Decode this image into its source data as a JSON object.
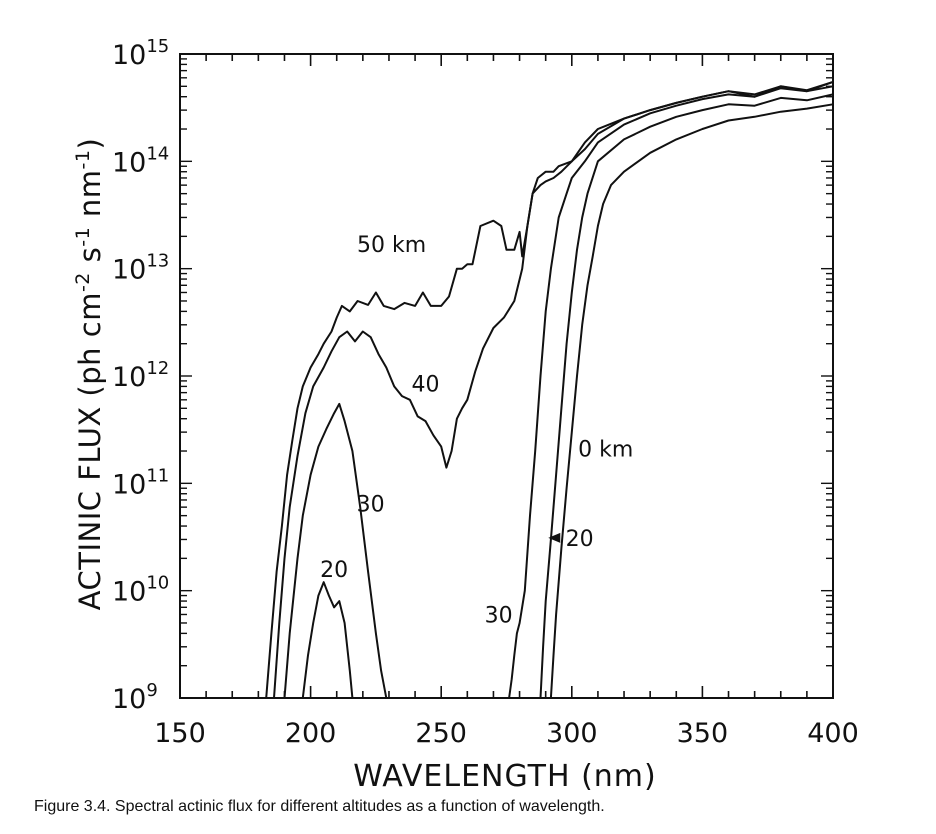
{
  "caption": "Figure 3.4.  Spectral actinic flux for different altitudes as a function of wavelength.",
  "chart_data": {
    "type": "line",
    "xlabel": "WAVELENGTH (nm)",
    "ylabel": "ACTINIC FLUX (ph cm^-2 s^-1 nm^-1)",
    "ylabel_parts": {
      "text1": "ACTINIC FLUX (ph cm",
      "sup1": "-2",
      "text2": " s",
      "sup2": "-1",
      "text3": " nm",
      "sup3": "-1",
      "text4": ")"
    },
    "xlim": [
      150,
      400
    ],
    "ylim": [
      1000000000.0,
      1000000000000000.0
    ],
    "yscale": "log",
    "x_ticks": [
      150,
      200,
      250,
      300,
      350,
      400
    ],
    "y_ticks": [
      {
        "base": "10",
        "exp": "9"
      },
      {
        "base": "10",
        "exp": "10"
      },
      {
        "base": "10",
        "exp": "11"
      },
      {
        "base": "10",
        "exp": "12"
      },
      {
        "base": "10",
        "exp": "13"
      },
      {
        "base": "10",
        "exp": "14"
      },
      {
        "base": "10",
        "exp": "15"
      }
    ],
    "series": [
      {
        "name": "50 km",
        "x": [
          183,
          185,
          187,
          189,
          191,
          193,
          195,
          197,
          200,
          203,
          205,
          208,
          210,
          212,
          215,
          218,
          222,
          225,
          228,
          232,
          236,
          240,
          243,
          246,
          250,
          253,
          256,
          258,
          260,
          262,
          265,
          270,
          273,
          275,
          278,
          280,
          281,
          283,
          285,
          287,
          290,
          293,
          295,
          300,
          305,
          310,
          320,
          330,
          340,
          350,
          360,
          370,
          380,
          390,
          400
        ],
        "y": [
          1000000000.0,
          4000000000.0,
          15000000000.0,
          40000000000.0,
          120000000000.0,
          250000000000.0,
          500000000000.0,
          800000000000.0,
          1200000000000.0,
          1600000000000.0,
          2000000000000.0,
          2600000000000.0,
          3500000000000.0,
          4500000000000.0,
          4000000000000.0,
          5000000000000.0,
          4600000000000.0,
          6000000000000.0,
          4500000000000.0,
          4200000000000.0,
          4800000000000.0,
          4500000000000.0,
          6000000000000.0,
          4500000000000.0,
          4500000000000.0,
          5500000000000.0,
          10000000000000.0,
          10000000000000.0,
          11000000000000.0,
          11000000000000.0,
          25000000000000.0,
          28000000000000.0,
          25000000000000.0,
          15000000000000.0,
          15000000000000.0,
          22000000000000.0,
          13000000000000.0,
          25000000000000.0,
          50000000000000.0,
          70000000000000.0,
          80000000000000.0,
          80000000000000.0,
          90000000000000.0,
          100000000000000.0,
          150000000000000.0,
          200000000000000.0,
          250000000000000.0,
          300000000000000.0,
          350000000000000.0,
          400000000000000.0,
          450000000000000.0,
          400000000000000.0,
          500000000000000.0,
          450000000000000.0,
          550000000000000.0
        ]
      },
      {
        "name": "40",
        "x": [
          186,
          188,
          190,
          192,
          195,
          198,
          201,
          205,
          208,
          211,
          214,
          217,
          220,
          223,
          226,
          229,
          232,
          235,
          238,
          241,
          244,
          247,
          250,
          252,
          254,
          256,
          258,
          260,
          263,
          266,
          270,
          274,
          278,
          281,
          283,
          285,
          288,
          290,
          293,
          296,
          300,
          305,
          310,
          320,
          330,
          340,
          350,
          360,
          370,
          380,
          390,
          400
        ],
        "y": [
          1000000000.0,
          5000000000.0,
          20000000000.0,
          60000000000.0,
          180000000000.0,
          450000000000.0,
          800000000000.0,
          1200000000000.0,
          1700000000000.0,
          2300000000000.0,
          2600000000000.0,
          2100000000000.0,
          2600000000000.0,
          2300000000000.0,
          1600000000000.0,
          1200000000000.0,
          800000000000.0,
          650000000000.0,
          600000000000.0,
          420000000000.0,
          380000000000.0,
          280000000000.0,
          220000000000.0,
          140000000000.0,
          200000000000.0,
          400000000000.0,
          500000000000.0,
          600000000000.0,
          1100000000000.0,
          1800000000000.0,
          2800000000000.0,
          3500000000000.0,
          5000000000000.0,
          10000000000000.0,
          25000000000000.0,
          50000000000000.0,
          60000000000000.0,
          65000000000000.0,
          70000000000000.0,
          80000000000000.0,
          100000000000000.0,
          130000000000000.0,
          180000000000000.0,
          250000000000000.0,
          300000000000000.0,
          350000000000000.0,
          400000000000000.0,
          450000000000000.0,
          420000000000000.0,
          500000000000000.0,
          460000000000000.0,
          550000000000000.0
        ]
      },
      {
        "name": "30",
        "x": [
          190,
          192,
          195,
          197,
          200,
          203,
          206,
          209,
          211,
          213,
          216,
          219,
          222,
          225,
          227,
          229
        ],
        "y": [
          1000000000.0,
          4000000000.0,
          20000000000.0,
          50000000000.0,
          120000000000.0,
          220000000000.0,
          320000000000.0,
          450000000000.0,
          550000000000.0,
          380000000000.0,
          200000000000.0,
          60000000000.0,
          15000000000.0,
          4000000000.0,
          1800000000.0,
          1000000000.0
        ]
      },
      {
        "name": "20",
        "x": [
          197,
          199,
          201,
          203,
          205,
          207,
          209,
          211,
          213,
          214,
          215,
          216
        ],
        "y": [
          1000000000.0,
          2500000000.0,
          5000000000.0,
          9000000000.0,
          12000000000.0,
          9000000000.0,
          7000000000.0,
          8000000000.0,
          5000000000.0,
          3000000000.0,
          1800000000.0,
          1000000000.0
        ]
      },
      {
        "name": "30",
        "x": [
          276,
          277,
          278,
          279,
          280,
          282,
          284,
          286,
          288,
          290,
          292,
          295,
          298,
          300,
          305,
          310,
          320,
          330,
          340,
          350,
          360,
          370,
          380,
          390,
          400
        ],
        "y": [
          1000000000.0,
          1500000000.0,
          2500000000.0,
          4000000000.0,
          5000000000.0,
          10000000000.0,
          50000000000.0,
          200000000000.0,
          1000000000000.0,
          4000000000000.0,
          10000000000000.0,
          30000000000000.0,
          50000000000000.0,
          70000000000000.0,
          100000000000000.0,
          150000000000000.0,
          220000000000000.0,
          280000000000000.0,
          330000000000000.0,
          380000000000000.0,
          420000000000000.0,
          400000000000000.0,
          480000000000000.0,
          450000000000000.0,
          500000000000000.0
        ]
      },
      {
        "name": "20",
        "x": [
          288,
          289,
          290,
          292,
          294,
          296,
          298,
          300,
          302,
          304,
          306,
          310,
          320,
          330,
          340,
          350,
          360,
          370,
          380,
          390,
          400
        ],
        "y": [
          1000000000.0,
          3000000000.0,
          8000000000.0,
          30000000000.0,
          120000000000.0,
          500000000000.0,
          2000000000000.0,
          6000000000000.0,
          15000000000000.0,
          30000000000000.0,
          50000000000000.0,
          100000000000000.0,
          160000000000000.0,
          210000000000000.0,
          260000000000000.0,
          300000000000000.0,
          340000000000000.0,
          330000000000000.0,
          390000000000000.0,
          370000000000000.0,
          420000000000000.0
        ]
      },
      {
        "name": "0 km",
        "x": [
          292,
          293,
          294,
          296,
          298,
          300,
          302,
          304,
          306,
          308,
          310,
          312,
          315,
          320,
          330,
          340,
          350,
          360,
          370,
          380,
          390,
          400
        ],
        "y": [
          1000000000.0,
          2500000000.0,
          6000000000.0,
          25000000000.0,
          90000000000.0,
          300000000000.0,
          1000000000000.0,
          3000000000000.0,
          7000000000000.0,
          13000000000000.0,
          25000000000000.0,
          40000000000000.0,
          60000000000000.0,
          80000000000000.0,
          120000000000000.0,
          160000000000000.0,
          200000000000000.0,
          240000000000000.0,
          260000000000000.0,
          290000000000000.0,
          310000000000000.0,
          340000000000000.0
        ]
      }
    ],
    "annotations": [
      {
        "text": "50 km",
        "x": 231,
        "y": 17000000000000.0
      },
      {
        "text": "40",
        "x": 244,
        "y": 850000000000.0
      },
      {
        "text": "30",
        "x": 223,
        "y": 65000000000.0
      },
      {
        "text": "20",
        "x": 209,
        "y": 16000000000.0
      },
      {
        "text": "30",
        "x": 272,
        "y": 6000000000.0
      },
      {
        "text": "0 km",
        "x": 313,
        "y": 210000000000.0
      },
      {
        "text": "20",
        "x": 303,
        "y": 31000000000.0,
        "arrow_to": [
          291,
          31000000000.0
        ]
      }
    ],
    "grid": false
  }
}
